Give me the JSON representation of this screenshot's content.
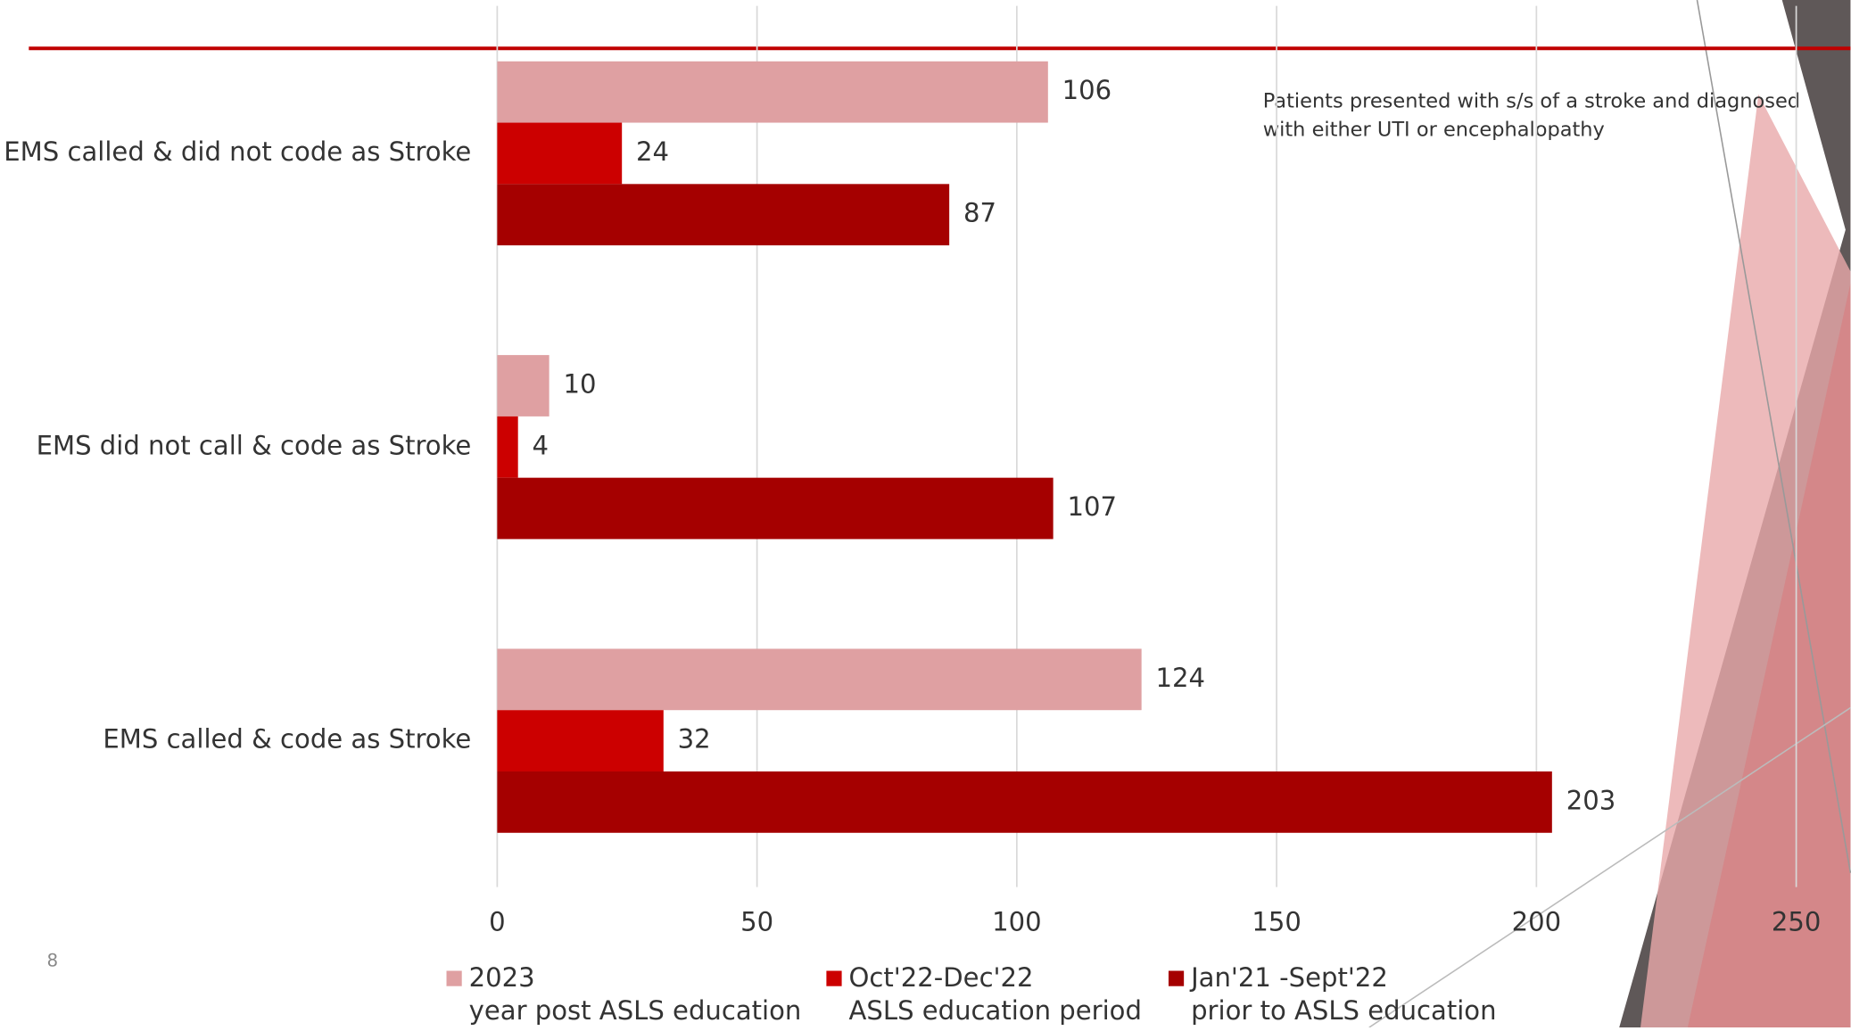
{
  "chart_data": {
    "type": "hbar",
    "categories": [
      "EMS called & did not code as Stroke",
      "EMS did not call & code as Stroke",
      "EMS called & code as Stroke"
    ],
    "series": [
      {
        "name": "2023\nyear post ASLS education",
        "color": "#dfa0a2",
        "values": [
          106,
          10,
          124
        ]
      },
      {
        "name": "Oct'22-Dec'22\nASLS education period",
        "color": "#cc0000",
        "values": [
          24,
          4,
          32
        ]
      },
      {
        "name": "Jan'21 -Sept'22\nprior to ASLS education",
        "color": "#a50000",
        "values": [
          87,
          107,
          203
        ]
      }
    ],
    "xlim": [
      0,
      250
    ],
    "xticks": [
      0,
      50,
      100,
      150,
      200,
      250
    ],
    "grid": true,
    "annotation": "Patients presented with s/s of a stroke and diagnosed\nwith either UTI or encephalopathy",
    "page_number": "8"
  }
}
